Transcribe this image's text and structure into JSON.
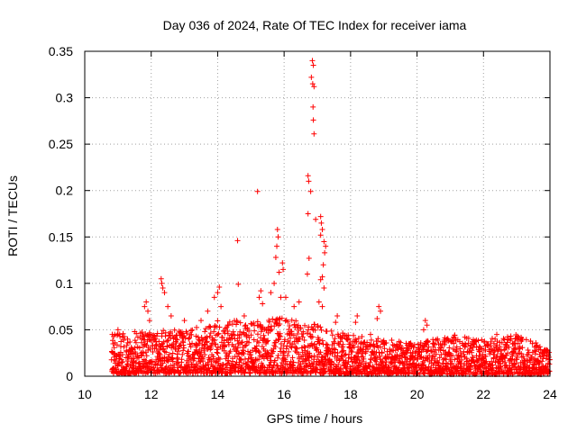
{
  "chart_data": {
    "type": "scatter",
    "title": "Day 036 of 2024, Rate Of TEC Index for receiver iama",
    "xlabel": "GPS time / hours",
    "ylabel": "ROTI / TECUs",
    "xlim": [
      10,
      24
    ],
    "ylim": [
      0,
      0.35
    ],
    "xticks": [
      10,
      12,
      14,
      16,
      18,
      20,
      22,
      24
    ],
    "yticks": [
      0,
      0.05,
      0.1,
      0.15,
      0.2,
      0.25,
      0.3,
      0.35
    ],
    "xtick_labels": [
      "10",
      "12",
      "14",
      "16",
      "18",
      "20",
      "22",
      "24"
    ],
    "ytick_labels": [
      "0",
      "0.05",
      "0.1",
      "0.15",
      "0.2",
      "0.25",
      "0.3",
      "0.35"
    ],
    "grid": true,
    "marker": "+",
    "color": "#ff0000",
    "data_range_hours": [
      10.8,
      24.0
    ],
    "baseline_band": [
      {
        "x": 10.8,
        "y_min": 0.003,
        "y_max": 0.045
      },
      {
        "x": 12.0,
        "y_min": 0.003,
        "y_max": 0.05
      },
      {
        "x": 13.0,
        "y_min": 0.003,
        "y_max": 0.05
      },
      {
        "x": 14.0,
        "y_min": 0.003,
        "y_max": 0.06
      },
      {
        "x": 15.0,
        "y_min": 0.003,
        "y_max": 0.06
      },
      {
        "x": 16.0,
        "y_min": 0.003,
        "y_max": 0.065
      },
      {
        "x": 17.0,
        "y_min": 0.003,
        "y_max": 0.055
      },
      {
        "x": 18.0,
        "y_min": 0.002,
        "y_max": 0.045
      },
      {
        "x": 19.0,
        "y_min": 0.002,
        "y_max": 0.04
      },
      {
        "x": 20.0,
        "y_min": 0.002,
        "y_max": 0.035
      },
      {
        "x": 21.0,
        "y_min": 0.002,
        "y_max": 0.045
      },
      {
        "x": 22.0,
        "y_min": 0.002,
        "y_max": 0.04
      },
      {
        "x": 23.0,
        "y_min": 0.002,
        "y_max": 0.045
      },
      {
        "x": 24.0,
        "y_min": 0.002,
        "y_max": 0.03
      }
    ],
    "notable_points": [
      {
        "x": 16.85,
        "y": 0.34
      },
      {
        "x": 16.88,
        "y": 0.335
      },
      {
        "x": 16.82,
        "y": 0.322
      },
      {
        "x": 16.86,
        "y": 0.315
      },
      {
        "x": 16.9,
        "y": 0.312
      },
      {
        "x": 16.87,
        "y": 0.29
      },
      {
        "x": 16.88,
        "y": 0.276
      },
      {
        "x": 16.9,
        "y": 0.261
      },
      {
        "x": 16.72,
        "y": 0.216
      },
      {
        "x": 16.74,
        "y": 0.21
      },
      {
        "x": 16.8,
        "y": 0.199
      },
      {
        "x": 16.72,
        "y": 0.175
      },
      {
        "x": 16.95,
        "y": 0.169
      },
      {
        "x": 17.1,
        "y": 0.172
      },
      {
        "x": 17.12,
        "y": 0.165
      },
      {
        "x": 17.15,
        "y": 0.158
      },
      {
        "x": 17.1,
        "y": 0.152
      },
      {
        "x": 17.2,
        "y": 0.145
      },
      {
        "x": 17.25,
        "y": 0.14
      },
      {
        "x": 17.22,
        "y": 0.133
      },
      {
        "x": 17.18,
        "y": 0.12
      },
      {
        "x": 17.15,
        "y": 0.107
      },
      {
        "x": 17.1,
        "y": 0.104
      },
      {
        "x": 17.2,
        "y": 0.095
      },
      {
        "x": 17.05,
        "y": 0.08
      },
      {
        "x": 17.15,
        "y": 0.075
      },
      {
        "x": 16.75,
        "y": 0.127
      },
      {
        "x": 16.7,
        "y": 0.11
      },
      {
        "x": 15.2,
        "y": 0.199
      },
      {
        "x": 15.8,
        "y": 0.158
      },
      {
        "x": 15.82,
        "y": 0.15
      },
      {
        "x": 15.78,
        "y": 0.14
      },
      {
        "x": 15.75,
        "y": 0.128
      },
      {
        "x": 15.95,
        "y": 0.122
      },
      {
        "x": 15.97,
        "y": 0.115
      },
      {
        "x": 15.85,
        "y": 0.112
      },
      {
        "x": 15.7,
        "y": 0.1
      },
      {
        "x": 15.6,
        "y": 0.09
      },
      {
        "x": 15.9,
        "y": 0.085
      },
      {
        "x": 14.6,
        "y": 0.146
      },
      {
        "x": 14.62,
        "y": 0.099
      },
      {
        "x": 14.05,
        "y": 0.096
      },
      {
        "x": 14.0,
        "y": 0.09
      },
      {
        "x": 13.9,
        "y": 0.085
      },
      {
        "x": 14.1,
        "y": 0.075
      },
      {
        "x": 15.3,
        "y": 0.092
      },
      {
        "x": 15.25,
        "y": 0.085
      },
      {
        "x": 15.35,
        "y": 0.078
      },
      {
        "x": 16.05,
        "y": 0.085
      },
      {
        "x": 16.3,
        "y": 0.075
      },
      {
        "x": 16.45,
        "y": 0.08
      },
      {
        "x": 12.3,
        "y": 0.105
      },
      {
        "x": 12.32,
        "y": 0.1
      },
      {
        "x": 12.35,
        "y": 0.095
      },
      {
        "x": 12.4,
        "y": 0.09
      },
      {
        "x": 11.85,
        "y": 0.08
      },
      {
        "x": 11.8,
        "y": 0.075
      },
      {
        "x": 11.9,
        "y": 0.07
      },
      {
        "x": 11.95,
        "y": 0.06
      },
      {
        "x": 12.5,
        "y": 0.075
      },
      {
        "x": 12.6,
        "y": 0.065
      },
      {
        "x": 13.0,
        "y": 0.06
      },
      {
        "x": 13.5,
        "y": 0.06
      },
      {
        "x": 13.7,
        "y": 0.07
      },
      {
        "x": 14.3,
        "y": 0.055
      },
      {
        "x": 14.8,
        "y": 0.065
      },
      {
        "x": 15.1,
        "y": 0.055
      },
      {
        "x": 17.6,
        "y": 0.065
      },
      {
        "x": 17.55,
        "y": 0.058
      },
      {
        "x": 18.2,
        "y": 0.065
      },
      {
        "x": 18.15,
        "y": 0.058
      },
      {
        "x": 18.85,
        "y": 0.075
      },
      {
        "x": 18.9,
        "y": 0.07
      },
      {
        "x": 18.8,
        "y": 0.062
      },
      {
        "x": 18.6,
        "y": 0.045
      },
      {
        "x": 20.25,
        "y": 0.06
      },
      {
        "x": 20.3,
        "y": 0.055
      },
      {
        "x": 20.2,
        "y": 0.05
      },
      {
        "x": 21.1,
        "y": 0.042
      },
      {
        "x": 22.4,
        "y": 0.045
      },
      {
        "x": 22.35,
        "y": 0.04
      },
      {
        "x": 23.9,
        "y": 0.028
      },
      {
        "x": 11.0,
        "y": 0.05
      },
      {
        "x": 10.9,
        "y": 0.045
      },
      {
        "x": 11.5,
        "y": 0.048
      }
    ]
  }
}
